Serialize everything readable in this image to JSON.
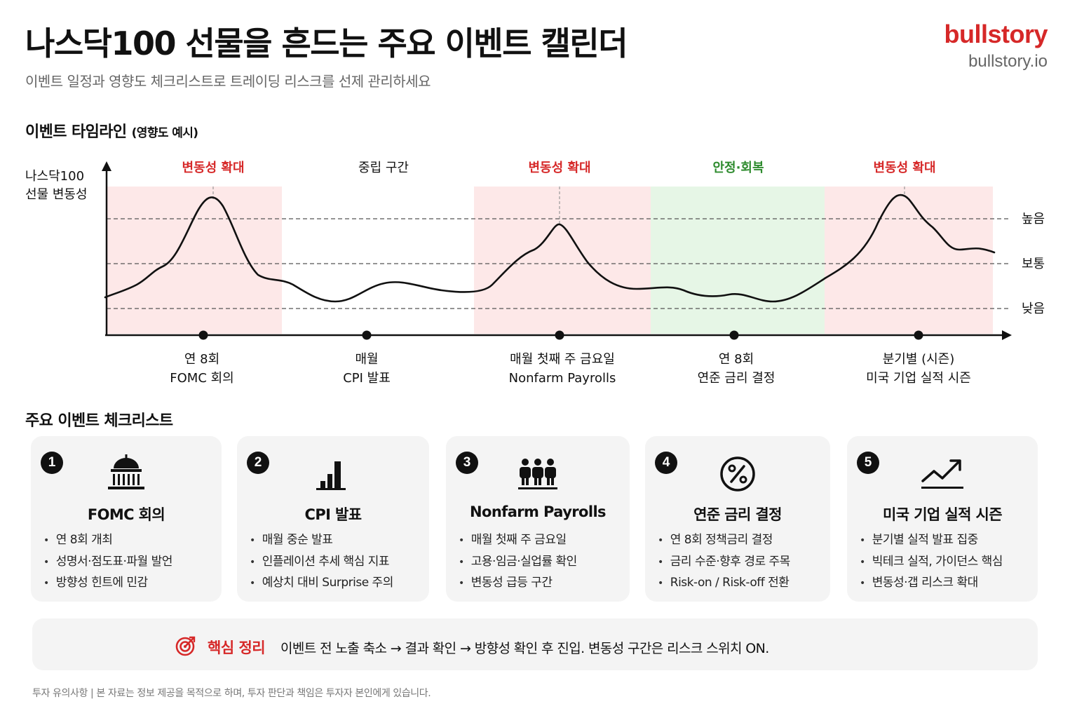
{
  "header": {
    "title": "나스닥100 선물을 흔드는 주요 이벤트 캘린더",
    "subtitle": "이벤트 일정과 영향도 체크리스트로 트레이딩 리스크를 선제 관리하세요",
    "brand": "bullstory",
    "brand_url": "bullstory.io"
  },
  "timeline": {
    "title": "이벤트 타임라인",
    "title_note": "(영향도 예시)"
  },
  "chart_data": {
    "type": "line",
    "ylabel": [
      "나스닥100",
      "선물 변동성"
    ],
    "levels": [
      "높음",
      "보통",
      "낮음"
    ],
    "zones": [
      {
        "label": "변동성 확대",
        "kind": "high"
      },
      {
        "label": "중립 구간",
        "kind": "neutral"
      },
      {
        "label": "변동성 확대",
        "kind": "high"
      },
      {
        "label": "안정·회복",
        "kind": "calm"
      },
      {
        "label": "변동성 확대",
        "kind": "high"
      }
    ],
    "events": [
      {
        "line1": "연 8회",
        "line2": "FOMC 회의"
      },
      {
        "line1": "매월",
        "line2": "CPI 발표"
      },
      {
        "line1": "매월 첫째 주 금요일",
        "line2": "Nonfarm Payrolls"
      },
      {
        "line1": "연 8회",
        "line2": "연준 금리 결정"
      },
      {
        "line1": "분기별 (시즌)",
        "line2": "미국 기업 실적 시즌"
      }
    ],
    "colors": {
      "high": "#fde8e8",
      "calm": "#e6f6e6",
      "high_label": "#d62828",
      "calm_label": "#2e8b2e",
      "line": "#111111"
    }
  },
  "checklist": {
    "title": "주요 이벤트 체크리스트",
    "cards": [
      {
        "num": "1",
        "icon": "capitol-building-icon",
        "title": "FOMC 회의",
        "items": [
          "연 8회 개최",
          "성명서·점도표·파월 발언",
          "방향성 힌트에 민감"
        ]
      },
      {
        "num": "2",
        "icon": "bar-chart-icon",
        "title": "CPI 발표",
        "items": [
          "매월 중순 발표",
          "인플레이션 추세 핵심 지표",
          "예상치 대비 Surprise 주의"
        ]
      },
      {
        "num": "3",
        "icon": "people-group-icon",
        "title": "Nonfarm Payrolls",
        "items": [
          "매월 첫째 주 금요일",
          "고용·임금·실업률 확인",
          "변동성 급등 구간"
        ]
      },
      {
        "num": "4",
        "icon": "percent-circle-icon",
        "title": "연준 금리 결정",
        "items": [
          "연 8회 정책금리 결정",
          "금리 수준·향후 경로 주목",
          "Risk-on / Risk-off 전환"
        ]
      },
      {
        "num": "5",
        "icon": "trend-up-arrow-icon",
        "title": "미국 기업 실적 시즌",
        "items": [
          "분기별 실적 발표 집중",
          "빅테크 실적, 가이던스 핵심",
          "변동성·갭 리스크 확대"
        ]
      }
    ]
  },
  "summary": {
    "icon": "target-icon",
    "label": "핵심 정리",
    "text": "이벤트 전 노출 축소 → 결과 확인 → 방향성 확인 후 진입. 변동성 구간은 리스크 스위치 ON."
  },
  "footer": "투자 유의사항  |  본 자료는 정보 제공을 목적으로 하며, 투자 판단과 책임은 투자자 본인에게 있습니다."
}
